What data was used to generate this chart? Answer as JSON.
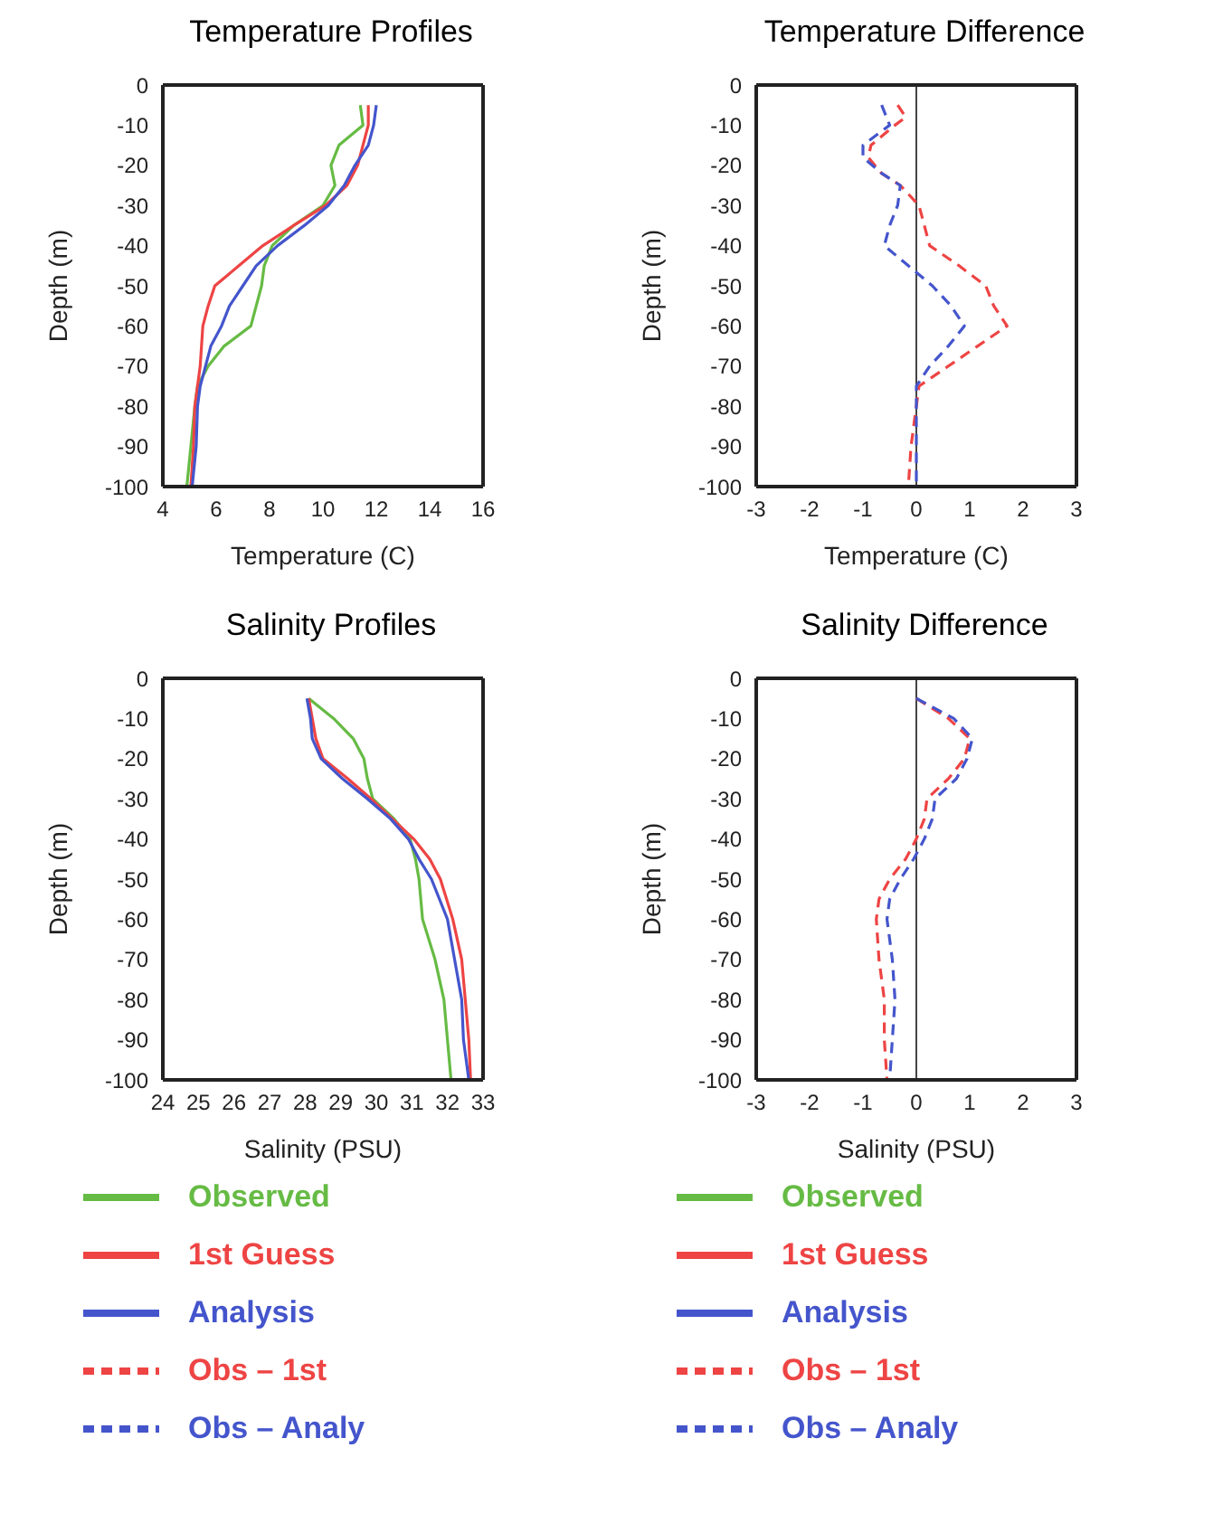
{
  "chart_data": [
    {
      "type": "line",
      "title": "Temperature Profiles",
      "xlabel": "Temperature (C)",
      "ylabel": "Depth (m)",
      "xlim": [
        4,
        16
      ],
      "xticks": [
        4,
        6,
        8,
        10,
        12,
        14,
        16
      ],
      "ylim": [
        -100,
        0
      ],
      "yticks": [
        0,
        -10,
        -20,
        -30,
        -40,
        -50,
        -60,
        -70,
        -80,
        -90,
        -100
      ],
      "grid": false,
      "legend": "bottom",
      "series": [
        {
          "name": "Observed",
          "color": "#66bb44",
          "line_style": "solid",
          "x": [
            11.4,
            11.5,
            10.6,
            10.3,
            10.45,
            10.0,
            8.9,
            8.1,
            7.8,
            7.7,
            7.5,
            7.3,
            6.3,
            5.7,
            5.3,
            5.2,
            5.05,
            4.9
          ],
          "values": [
            -5,
            -10,
            -15,
            -20,
            -25,
            -30,
            -35,
            -40,
            -45,
            -50,
            -55,
            -60,
            -65,
            -70,
            -75,
            -80,
            -90,
            -100
          ]
        },
        {
          "name": "1st Guess",
          "color": "#ee4444",
          "line_style": "solid",
          "x": [
            11.7,
            11.7,
            11.5,
            11.3,
            10.9,
            10.1,
            8.9,
            7.75,
            6.85,
            5.95,
            5.7,
            5.5,
            5.45,
            5.4,
            5.3,
            5.2,
            5.15,
            5.05
          ],
          "values": [
            -5,
            -10,
            -15,
            -20,
            -25,
            -30,
            -35,
            -40,
            -45,
            -50,
            -55,
            -60,
            -65,
            -70,
            -75,
            -80,
            -90,
            -100
          ]
        },
        {
          "name": "Analysis",
          "color": "#4455cc",
          "line_style": "solid",
          "x": [
            12.0,
            11.9,
            11.7,
            11.2,
            10.8,
            10.2,
            9.3,
            8.3,
            7.5,
            7.0,
            6.5,
            6.2,
            5.8,
            5.6,
            5.4,
            5.3,
            5.25,
            5.1
          ],
          "values": [
            -5,
            -10,
            -15,
            -20,
            -25,
            -30,
            -35,
            -40,
            -45,
            -50,
            -55,
            -60,
            -65,
            -70,
            -75,
            -80,
            -90,
            -100
          ]
        }
      ]
    },
    {
      "type": "line",
      "title": "Temperature Difference",
      "xlabel": "Temperature (C)",
      "ylabel": "Depth (m)",
      "xlim": [
        -3,
        3
      ],
      "xticks": [
        -3,
        -2,
        -1,
        0,
        1,
        2,
        3
      ],
      "ylim": [
        -100,
        0
      ],
      "yticks": [
        0,
        -10,
        -20,
        -30,
        -40,
        -50,
        -60,
        -70,
        -80,
        -90,
        -100
      ],
      "grid": false,
      "legend": "bottom",
      "ref_lines": [
        {
          "axis": "x",
          "value": 0,
          "color": "#444444"
        }
      ],
      "series": [
        {
          "name": "Obs – 1st",
          "color": "#ee4444",
          "line_style": "dashed",
          "x": [
            -0.35,
            -0.2,
            -0.4,
            -0.85,
            -0.9,
            -0.65,
            -0.3,
            0.05,
            0.15,
            0.25,
            0.8,
            1.3,
            1.45,
            1.7,
            1.15,
            0.6,
            0.05,
            0,
            -0.1,
            -0.15
          ],
          "values": [
            -5,
            -8,
            -10,
            -15,
            -18,
            -22,
            -25,
            -30,
            -35,
            -40,
            -45,
            -50,
            -55,
            -60,
            -65,
            -70,
            -75,
            -80,
            -90,
            -100
          ]
        },
        {
          "name": "Obs – Analy",
          "color": "#4455cc",
          "line_style": "dashed",
          "x": [
            -0.65,
            -0.5,
            -1.0,
            -1.0,
            -0.65,
            -0.3,
            -0.35,
            -0.5,
            -0.6,
            -0.15,
            0.3,
            0.65,
            0.9,
            0.6,
            0.25,
            0,
            0,
            0,
            0
          ],
          "values": [
            -5,
            -10,
            -15,
            -18,
            -22,
            -25,
            -30,
            -35,
            -40,
            -45,
            -50,
            -55,
            -60,
            -65,
            -70,
            -75,
            -80,
            -90,
            -100
          ]
        }
      ]
    },
    {
      "type": "line",
      "title": "Salinity Profiles",
      "xlabel": "Salinity (PSU)",
      "ylabel": "Depth (m)",
      "xlim": [
        24,
        33
      ],
      "xticks": [
        24,
        25,
        26,
        27,
        28,
        29,
        30,
        31,
        32,
        33
      ],
      "ylim": [
        -100,
        0
      ],
      "yticks": [
        0,
        -10,
        -20,
        -30,
        -40,
        -50,
        -60,
        -70,
        -80,
        -90,
        -100
      ],
      "grid": false,
      "legend": "bottom",
      "series": [
        {
          "name": "Observed",
          "color": "#66bb44",
          "line_style": "solid",
          "x": [
            28.1,
            28.8,
            29.35,
            29.65,
            29.75,
            29.9,
            30.5,
            30.95,
            31.1,
            31.2,
            31.3,
            31.65,
            31.9,
            32.0,
            32.1
          ],
          "values": [
            -5,
            -10,
            -15,
            -20,
            -25,
            -30,
            -35,
            -40,
            -45,
            -50,
            -60,
            -70,
            -80,
            -90,
            -100
          ]
        },
        {
          "name": "1st Guess",
          "color": "#ee4444",
          "line_style": "solid",
          "x": [
            28.1,
            28.2,
            28.3,
            28.5,
            29.2,
            29.85,
            30.45,
            31.05,
            31.5,
            31.8,
            32.15,
            32.4,
            32.5,
            32.6,
            32.65
          ],
          "values": [
            -5,
            -10,
            -15,
            -20,
            -25,
            -30,
            -35,
            -40,
            -45,
            -50,
            -60,
            -70,
            -80,
            -90,
            -100
          ]
        },
        {
          "name": "Analysis",
          "color": "#4455cc",
          "line_style": "solid",
          "x": [
            28.05,
            28.15,
            28.2,
            28.45,
            29.05,
            29.75,
            30.4,
            30.9,
            31.2,
            31.55,
            32.0,
            32.2,
            32.4,
            32.45,
            32.6
          ],
          "values": [
            -5,
            -10,
            -15,
            -20,
            -25,
            -30,
            -35,
            -40,
            -45,
            -50,
            -60,
            -70,
            -80,
            -90,
            -100
          ]
        }
      ]
    },
    {
      "type": "line",
      "title": "Salinity Difference",
      "xlabel": "Salinity (PSU)",
      "ylabel": "Depth (m)",
      "xlim": [
        -3,
        3
      ],
      "xticks": [
        -3,
        -2,
        -1,
        0,
        1,
        2,
        3
      ],
      "ylim": [
        -100,
        0
      ],
      "yticks": [
        0,
        -10,
        -20,
        -30,
        -40,
        -50,
        -60,
        -70,
        -80,
        -90,
        -100
      ],
      "grid": false,
      "legend": "bottom",
      "ref_lines": [
        {
          "axis": "x",
          "value": 0,
          "color": "#444444"
        }
      ],
      "series": [
        {
          "name": "Obs – 1st",
          "color": "#ee4444",
          "line_style": "dashed",
          "x": [
            0,
            0.6,
            1.0,
            0.9,
            0.6,
            0.2,
            0.15,
            0,
            -0.2,
            -0.5,
            -0.7,
            -0.75,
            -0.7,
            -0.6,
            -0.6,
            -0.55
          ],
          "values": [
            -5,
            -10,
            -15,
            -20,
            -25,
            -30,
            -35,
            -40,
            -45,
            -50,
            -55,
            -60,
            -70,
            -80,
            -90,
            -100
          ]
        },
        {
          "name": "Obs – Analy",
          "color": "#4455cc",
          "line_style": "dashed",
          "x": [
            0,
            0.7,
            1.05,
            0.95,
            0.75,
            0.35,
            0.3,
            0.15,
            -0.05,
            -0.3,
            -0.5,
            -0.55,
            -0.45,
            -0.4,
            -0.45,
            -0.5
          ],
          "values": [
            -5,
            -10,
            -15,
            -20,
            -25,
            -30,
            -35,
            -40,
            -45,
            -50,
            -55,
            -60,
            -70,
            -80,
            -90,
            -100
          ]
        }
      ]
    }
  ]
}
